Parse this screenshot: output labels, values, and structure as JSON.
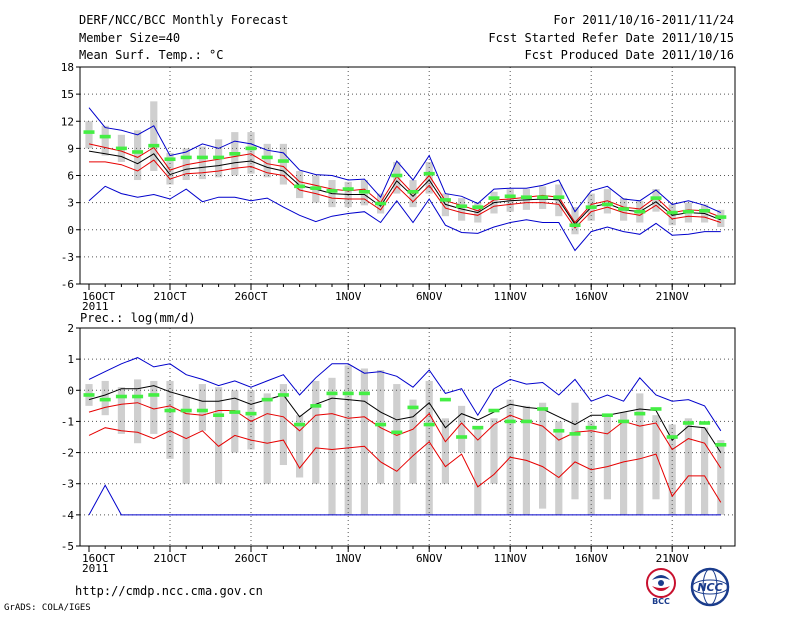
{
  "header": {
    "title": "DERF/NCC/BCC Monthly Forecast",
    "member_size": "Member Size=40",
    "variable": "Mean Surf. Temp.: °C",
    "forecast_period": "For 2011/10/16-2011/11/24",
    "started_refer_date": "Fcst Started Refer Date 2011/10/15",
    "produced_date": "Fcst Produced Date 2011/10/16"
  },
  "footer": {
    "url": "http://cmdp.ncc.cma.gov.cn",
    "grads_credit": "GrADS: COLA/IGES",
    "logo_left_text": "BCC",
    "logo_right_text": "NCC"
  },
  "colors": {
    "box": "#cfcfcf",
    "ensemble_mean": "#000000",
    "inner_band": "#e60000",
    "outer_band": "#0000cc",
    "observed": "#44ee44",
    "grid": "#555555"
  },
  "chart_data": [
    {
      "type": "line",
      "title": "Mean Surf. Temp.: °C",
      "xlabel": "",
      "ylabel": "Mean Surf. Temp. (°C)",
      "ylim": [
        -6,
        18
      ],
      "yticks": [
        -6,
        -3,
        0,
        3,
        6,
        9,
        12,
        15,
        18
      ],
      "year_label": "2011",
      "xtick_labels": [
        {
          "day": 0,
          "label": "16OCT"
        },
        {
          "day": 5,
          "label": "21OCT"
        },
        {
          "day": 10,
          "label": "26OCT"
        },
        {
          "day": 16,
          "label": "1NOV"
        },
        {
          "day": 21,
          "label": "6NOV"
        },
        {
          "day": 26,
          "label": "11NOV"
        },
        {
          "day": 31,
          "label": "16NOV"
        },
        {
          "day": 36,
          "label": "21NOV"
        }
      ],
      "x_days": [
        0,
        1,
        2,
        3,
        4,
        5,
        6,
        7,
        8,
        9,
        10,
        11,
        12,
        13,
        14,
        15,
        16,
        17,
        18,
        19,
        20,
        21,
        22,
        23,
        24,
        25,
        26,
        27,
        28,
        29,
        30,
        31,
        32,
        33,
        34,
        35,
        36,
        37,
        38,
        39
      ],
      "series": [
        {
          "name": "upper_bound",
          "color_key": "outer_band",
          "values": [
            13.5,
            11.3,
            11.0,
            10.5,
            11.5,
            8.2,
            8.6,
            9.5,
            9.0,
            9.8,
            9.5,
            8.8,
            8.5,
            6.6,
            6.1,
            6.0,
            5.5,
            5.6,
            3.6,
            7.6,
            5.5,
            8.2,
            4.0,
            3.7,
            2.9,
            4.5,
            4.6,
            4.6,
            4.9,
            5.5,
            2.0,
            4.3,
            4.8,
            3.4,
            3.2,
            4.4,
            2.8,
            3.2,
            2.7,
            1.9
          ]
        },
        {
          "name": "inner_upper",
          "color_key": "inner_band",
          "values": [
            9.5,
            9.1,
            8.7,
            8.0,
            9.1,
            6.6,
            7.2,
            7.5,
            7.8,
            8.1,
            8.4,
            7.3,
            7.0,
            5.3,
            4.9,
            4.5,
            4.3,
            4.5,
            3.0,
            5.9,
            4.0,
            6.0,
            3.2,
            2.7,
            2.1,
            3.3,
            3.4,
            3.6,
            3.8,
            3.6,
            0.8,
            2.8,
            3.2,
            2.5,
            2.3,
            3.6,
            1.9,
            2.2,
            2.1,
            1.4
          ]
        },
        {
          "name": "ensemble_mean",
          "color_key": "ensemble_mean",
          "values": [
            8.7,
            8.4,
            8.1,
            7.3,
            8.4,
            6.1,
            6.7,
            6.9,
            7.1,
            7.4,
            7.6,
            6.9,
            6.5,
            4.9,
            4.5,
            4.0,
            3.9,
            3.9,
            2.6,
            5.4,
            3.7,
            5.5,
            2.8,
            2.3,
            1.9,
            3.0,
            3.2,
            3.3,
            3.4,
            3.3,
            0.6,
            2.5,
            2.9,
            2.2,
            2.0,
            3.1,
            1.6,
            1.9,
            1.8,
            1.1
          ]
        },
        {
          "name": "inner_lower",
          "color_key": "inner_band",
          "values": [
            7.5,
            7.5,
            7.2,
            6.5,
            7.7,
            5.6,
            6.2,
            6.3,
            6.5,
            6.8,
            7.0,
            6.3,
            6.0,
            4.4,
            4.0,
            3.5,
            3.4,
            3.4,
            2.2,
            4.8,
            3.1,
            4.9,
            2.4,
            1.9,
            1.6,
            2.6,
            2.8,
            3.0,
            3.0,
            2.8,
            0.2,
            2.0,
            2.5,
            1.9,
            1.6,
            2.7,
            1.2,
            1.5,
            1.4,
            0.8
          ]
        },
        {
          "name": "lower_bound",
          "color_key": "outer_band",
          "values": [
            3.2,
            4.8,
            4.0,
            3.6,
            3.9,
            3.4,
            4.5,
            3.1,
            3.6,
            3.6,
            3.2,
            3.5,
            2.5,
            1.6,
            0.9,
            1.5,
            1.8,
            2.0,
            0.8,
            3.2,
            0.8,
            3.4,
            0.5,
            -0.3,
            -0.4,
            0.3,
            0.8,
            1.1,
            0.8,
            0.8,
            -2.3,
            -0.2,
            0.3,
            -0.2,
            -0.5,
            0.7,
            -0.6,
            -0.5,
            -0.2,
            -0.2
          ]
        }
      ],
      "box_ranges": [
        [
          9.0,
          12.0
        ],
        [
          8.2,
          11.5
        ],
        [
          7.5,
          10.5
        ],
        [
          5.5,
          11.0
        ],
        [
          6.5,
          14.2
        ],
        [
          5.0,
          8.5
        ],
        [
          5.5,
          9.0
        ],
        [
          5.6,
          9.2
        ],
        [
          5.8,
          10.0
        ],
        [
          6.0,
          10.8
        ],
        [
          6.2,
          10.8
        ],
        [
          5.8,
          9.5
        ],
        [
          5.0,
          9.5
        ],
        [
          3.5,
          6.5
        ],
        [
          3.0,
          6.0
        ],
        [
          2.5,
          5.5
        ],
        [
          2.5,
          5.3
        ],
        [
          2.7,
          5.5
        ],
        [
          1.8,
          4.0
        ],
        [
          4.0,
          7.5
        ],
        [
          2.5,
          5.5
        ],
        [
          4.0,
          7.5
        ],
        [
          1.5,
          4.0
        ],
        [
          1.0,
          3.5
        ],
        [
          0.8,
          3.0
        ],
        [
          1.8,
          4.2
        ],
        [
          2.0,
          4.5
        ],
        [
          2.2,
          4.5
        ],
        [
          2.3,
          4.8
        ],
        [
          1.5,
          5.0
        ],
        [
          -0.5,
          2.5
        ],
        [
          1.0,
          4.0
        ],
        [
          1.8,
          4.5
        ],
        [
          1.0,
          3.5
        ],
        [
          0.8,
          3.2
        ],
        [
          2.0,
          4.5
        ],
        [
          0.5,
          2.8
        ],
        [
          0.8,
          3.0
        ],
        [
          0.8,
          2.8
        ],
        [
          0.3,
          2.2
        ]
      ],
      "observed": [
        10.8,
        10.3,
        9.0,
        8.6,
        9.3,
        7.8,
        8.0,
        8.0,
        8.0,
        8.4,
        9.0,
        8.0,
        7.6,
        4.8,
        4.6,
        4.3,
        4.5,
        4.2,
        2.9,
        6.0,
        4.2,
        6.2,
        3.3,
        2.6,
        2.5,
        3.5,
        3.7,
        3.6,
        3.6,
        3.6,
        0.5,
        2.5,
        2.8,
        2.3,
        2.0,
        3.5,
        1.9,
        2.0,
        2.1,
        1.4
      ]
    },
    {
      "type": "line",
      "title": "Prec.: log(mm/d)",
      "xlabel": "",
      "ylabel": "Prec.: log(mm/d)",
      "ylim": [
        -5,
        2
      ],
      "yticks": [
        -5,
        -4,
        -3,
        -2,
        -1,
        0,
        1,
        2
      ],
      "year_label": "2011",
      "xtick_labels": [
        {
          "day": 0,
          "label": "16OCT"
        },
        {
          "day": 5,
          "label": "21OCT"
        },
        {
          "day": 10,
          "label": "26OCT"
        },
        {
          "day": 16,
          "label": "1NOV"
        },
        {
          "day": 21,
          "label": "6NOV"
        },
        {
          "day": 26,
          "label": "11NOV"
        },
        {
          "day": 31,
          "label": "16NOV"
        },
        {
          "day": 36,
          "label": "21NOV"
        }
      ],
      "x_days": [
        0,
        1,
        2,
        3,
        4,
        5,
        6,
        7,
        8,
        9,
        10,
        11,
        12,
        13,
        14,
        15,
        16,
        17,
        18,
        19,
        20,
        21,
        22,
        23,
        24,
        25,
        26,
        27,
        28,
        29,
        30,
        31,
        32,
        33,
        34,
        35,
        36,
        37,
        38,
        39
      ],
      "series": [
        {
          "name": "upper_bound",
          "color_key": "outer_band",
          "values": [
            0.35,
            0.6,
            0.85,
            1.05,
            0.75,
            0.85,
            0.5,
            0.35,
            0.15,
            0.3,
            0.1,
            0.3,
            0.5,
            -0.15,
            0.4,
            0.85,
            0.85,
            0.55,
            0.6,
            0.45,
            0.1,
            0.65,
            -0.1,
            0.05,
            -0.8,
            0.05,
            0.35,
            0.2,
            0.25,
            -0.15,
            0.35,
            -0.35,
            -0.15,
            -0.35,
            0.4,
            -0.15,
            -0.35,
            -0.3,
            -0.5,
            -1.3
          ]
        },
        {
          "name": "ensemble_mean",
          "color_key": "ensemble_mean",
          "values": [
            -0.3,
            -0.15,
            0.05,
            0.05,
            0.15,
            -0.05,
            -0.2,
            -0.35,
            -0.35,
            -0.25,
            -0.45,
            -0.3,
            -0.15,
            -0.85,
            -0.45,
            -0.25,
            -0.3,
            -0.35,
            -0.7,
            -0.95,
            -0.85,
            -0.4,
            -1.2,
            -0.75,
            -0.95,
            -0.7,
            -0.45,
            -0.55,
            -0.6,
            -0.85,
            -1.1,
            -0.8,
            -0.8,
            -0.7,
            -0.6,
            -0.65,
            -1.6,
            -1.15,
            -1.2,
            -2.0
          ]
        },
        {
          "name": "inner_upper",
          "color_key": "inner_band",
          "values": [
            -0.7,
            -0.55,
            -0.45,
            -0.4,
            -0.6,
            -0.5,
            -0.75,
            -0.8,
            -0.65,
            -0.65,
            -1.0,
            -0.75,
            -0.85,
            -1.3,
            -0.8,
            -0.75,
            -0.9,
            -0.85,
            -1.2,
            -1.45,
            -1.25,
            -0.75,
            -1.65,
            -1.05,
            -1.6,
            -1.1,
            -0.8,
            -1.0,
            -1.15,
            -1.6,
            -1.35,
            -1.3,
            -1.4,
            -1.0,
            -1.15,
            -1.05,
            -1.9,
            -1.55,
            -1.7,
            -2.5
          ]
        },
        {
          "name": "inner_lower",
          "color_key": "inner_band",
          "values": [
            -1.45,
            -1.2,
            -1.3,
            -1.35,
            -1.55,
            -1.3,
            -1.55,
            -1.3,
            -1.8,
            -1.45,
            -1.6,
            -1.7,
            -1.6,
            -2.5,
            -1.85,
            -1.9,
            -1.85,
            -1.8,
            -2.3,
            -2.6,
            -2.1,
            -1.65,
            -2.45,
            -2.05,
            -3.1,
            -2.7,
            -2.15,
            -2.25,
            -2.45,
            -2.8,
            -2.3,
            -2.55,
            -2.45,
            -2.3,
            -2.2,
            -2.05,
            -3.4,
            -2.75,
            -2.75,
            -3.6
          ]
        },
        {
          "name": "lower_bound",
          "color_key": "outer_band",
          "values": [
            -4.0,
            -3.05,
            -4.0,
            -4.0,
            -4.0,
            -4.0,
            -4.0,
            -4.0,
            -4.0,
            -4.0,
            -4.0,
            -4.0,
            -4.0,
            -4.0,
            -4.0,
            -4.0,
            -4.0,
            -4.0,
            -4.0,
            -4.0,
            -4.0,
            -4.0,
            -4.0,
            -4.0,
            -4.0,
            -4.0,
            -4.0,
            -4.0,
            -4.0,
            -4.0,
            -4.0,
            -4.0,
            -4.0,
            -4.0,
            -4.0,
            -4.0,
            -4.0,
            -4.0,
            -4.0,
            -4.0
          ]
        }
      ],
      "box_ranges": [
        [
          -0.5,
          0.2
        ],
        [
          -0.8,
          0.3
        ],
        [
          -1.4,
          0.1
        ],
        [
          -1.7,
          0.35
        ],
        [
          -1.4,
          0.3
        ],
        [
          -2.2,
          0.3
        ],
        [
          -3.0,
          -0.2
        ],
        [
          -1.3,
          0.2
        ],
        [
          -3.0,
          0.1
        ],
        [
          -2.0,
          0.0
        ],
        [
          -1.9,
          0.0
        ],
        [
          -3.0,
          -0.1
        ],
        [
          -2.4,
          0.2
        ],
        [
          -2.8,
          -0.8
        ],
        [
          -3.0,
          0.3
        ],
        [
          -4.0,
          0.4
        ],
        [
          -4.0,
          0.8
        ],
        [
          -4.0,
          0.7
        ],
        [
          -3.0,
          0.65
        ],
        [
          -4.0,
          0.2
        ],
        [
          -3.0,
          -0.3
        ],
        [
          -4.0,
          0.3
        ],
        [
          -3.0,
          -0.9
        ],
        [
          -2.0,
          -0.5
        ],
        [
          -4.0,
          -1.2
        ],
        [
          -3.0,
          -0.9
        ],
        [
          -4.0,
          -0.3
        ],
        [
          -4.0,
          -0.5
        ],
        [
          -3.8,
          -0.4
        ],
        [
          -4.0,
          -1.0
        ],
        [
          -3.5,
          -0.4
        ],
        [
          -4.0,
          -1.0
        ],
        [
          -3.5,
          -0.8
        ],
        [
          -4.0,
          -0.7
        ],
        [
          -4.0,
          -0.1
        ],
        [
          -3.5,
          -0.8
        ],
        [
          -4.0,
          -1.1
        ],
        [
          -4.0,
          -0.9
        ],
        [
          -4.0,
          -1.2
        ],
        [
          -4.0,
          -1.6
        ]
      ],
      "observed": [
        -0.15,
        -0.3,
        -0.2,
        -0.2,
        -0.15,
        -0.65,
        -0.65,
        -0.65,
        -0.8,
        -0.7,
        -0.75,
        -0.3,
        -0.15,
        -1.1,
        -0.5,
        -0.1,
        -0.1,
        -0.1,
        -1.1,
        -1.35,
        -0.55,
        -1.1,
        -0.3,
        -1.5,
        -1.2,
        -0.65,
        -1.0,
        -1.0,
        -0.6,
        -1.3,
        -1.4,
        -1.2,
        -0.8,
        -1.0,
        -0.75,
        -0.6,
        -1.5,
        -1.05,
        -1.05,
        -1.75
      ]
    }
  ]
}
